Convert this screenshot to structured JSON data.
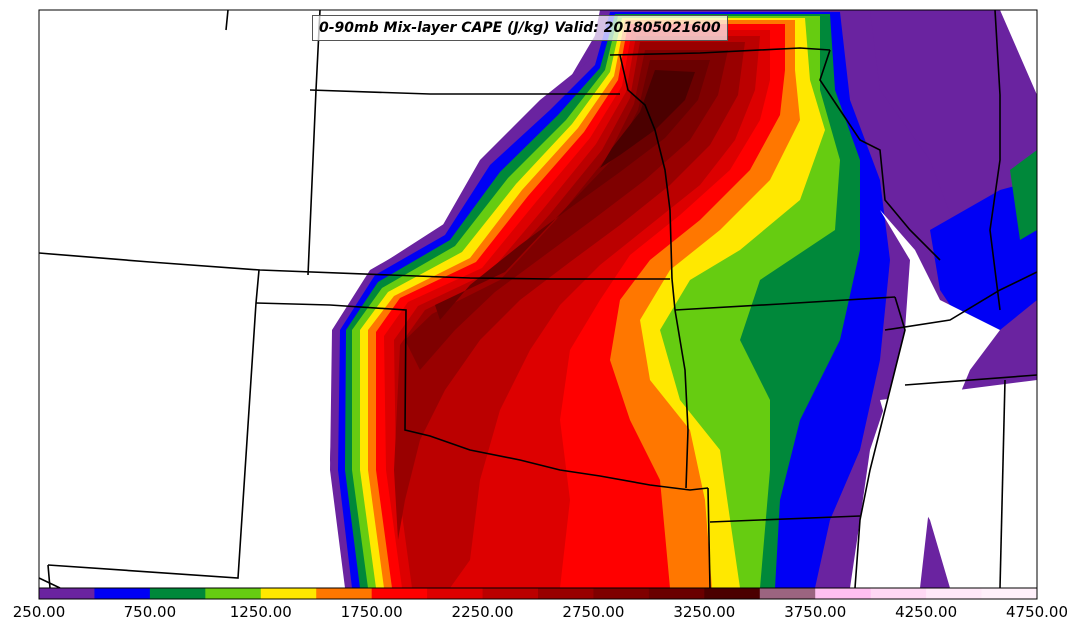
{
  "map": {
    "title": "0-90mb Mix-layer CAPE (J/kg) Valid: 201805021600"
  },
  "colorbar": {
    "tick_labels": [
      "250.00",
      "750.00",
      "1250.00",
      "1750.00",
      "2250.00",
      "2750.00",
      "3250.00",
      "3750.00",
      "4250.00",
      "4750.00"
    ],
    "levels": [
      250,
      500,
      750,
      1000,
      1250,
      1500,
      1750,
      2000,
      2250,
      2500,
      2750,
      3000,
      3250,
      3500,
      3750,
      4000,
      4250,
      4500,
      4750
    ],
    "colors": [
      "#6a23a0",
      "#0000f5",
      "#00883a",
      "#66cc11",
      "#ffe800",
      "#ff7700",
      "#ff0000",
      "#dd0000",
      "#bb0000",
      "#990000",
      "#7f0000",
      "#6a0000",
      "#4b0000",
      "#9b6480",
      "#ffc0f0",
      "#ffd8f4",
      "#ffe8f8",
      "#fff0fa"
    ]
  }
}
